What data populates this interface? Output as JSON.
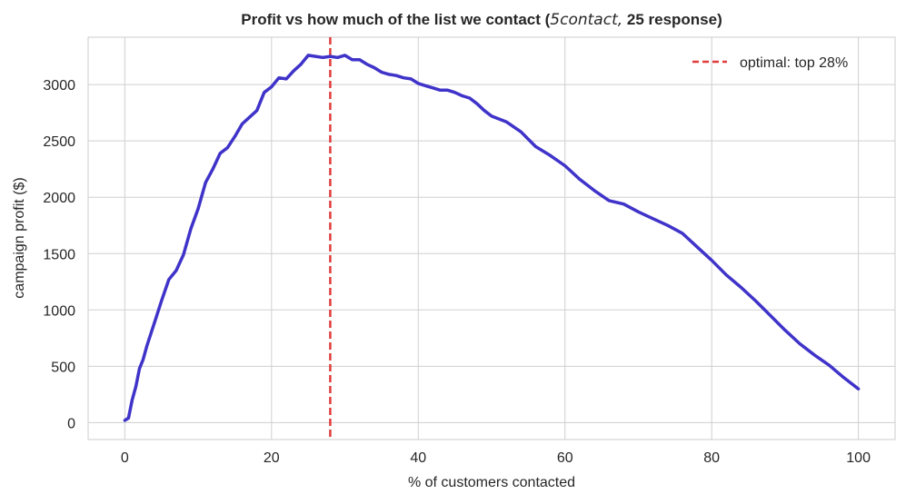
{
  "chart_data": {
    "type": "line",
    "title_parts": {
      "before": "Profit vs how much of the list we contact (",
      "math": "5contact,",
      "after": " 25 response)"
    },
    "xlabel": "% of customers contacted",
    "ylabel": "campaign profit ($)",
    "xlim": [
      -5,
      105
    ],
    "ylim": [
      -150,
      3420
    ],
    "xticks": [
      0,
      20,
      40,
      60,
      80,
      100
    ],
    "yticks": [
      0,
      500,
      1000,
      1500,
      2000,
      2500,
      3000
    ],
    "grid": true,
    "legend_position": "top-right",
    "series": [
      {
        "color": "#3f33c9",
        "x": [
          0,
          0.5,
          1,
          1.5,
          2,
          2.5,
          3,
          4,
          5,
          6,
          7,
          8,
          9,
          10,
          11,
          12,
          13,
          14,
          15,
          16,
          17,
          18,
          19,
          20,
          21,
          22,
          23,
          24,
          25,
          26,
          27,
          28,
          29,
          30,
          31,
          32,
          33,
          34,
          35,
          36,
          37,
          38,
          39,
          40,
          41,
          42,
          43,
          44,
          45,
          46,
          47,
          48,
          49,
          50,
          52,
          54,
          56,
          58,
          60,
          62,
          64,
          66,
          68,
          70,
          72,
          74,
          76,
          78,
          80,
          82,
          84,
          86,
          88,
          90,
          92,
          94,
          96,
          98,
          100
        ],
        "values": [
          20,
          40,
          200,
          320,
          480,
          560,
          680,
          880,
          1080,
          1270,
          1350,
          1490,
          1720,
          1900,
          2130,
          2250,
          2390,
          2440,
          2540,
          2650,
          2710,
          2770,
          2930,
          2980,
          3060,
          3050,
          3120,
          3180,
          3260,
          3250,
          3240,
          3250,
          3240,
          3260,
          3220,
          3220,
          3180,
          3150,
          3110,
          3090,
          3080,
          3060,
          3050,
          3010,
          2990,
          2970,
          2950,
          2950,
          2930,
          2900,
          2880,
          2830,
          2770,
          2720,
          2670,
          2580,
          2450,
          2370,
          2280,
          2160,
          2060,
          1970,
          1940,
          1870,
          1810,
          1750,
          1680,
          1560,
          1440,
          1310,
          1200,
          1080,
          950,
          820,
          700,
          600,
          510,
          400,
          300
        ]
      }
    ],
    "reference_lines": [
      {
        "x": 28,
        "color": "#e03c3c",
        "legend": "optimal: top 28%"
      }
    ],
    "zero_line_color": "#8c9bb5"
  }
}
